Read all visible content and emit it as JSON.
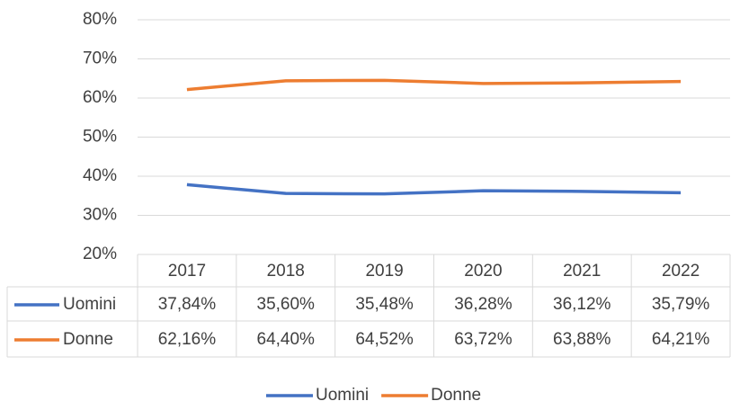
{
  "chart_data": {
    "type": "line",
    "categories": [
      "2017",
      "2018",
      "2019",
      "2020",
      "2021",
      "2022"
    ],
    "series": [
      {
        "name": "Uomini",
        "color": "#4472c4",
        "values": [
          37.84,
          35.6,
          35.48,
          36.28,
          36.12,
          35.79
        ],
        "value_labels": [
          "37,84%",
          "35,60%",
          "35,48%",
          "36,28%",
          "36,12%",
          "35,79%"
        ]
      },
      {
        "name": "Donne",
        "color": "#ed7d31",
        "values": [
          62.16,
          64.4,
          64.52,
          63.72,
          63.88,
          64.21
        ],
        "value_labels": [
          "62,16%",
          "64,40%",
          "64,52%",
          "63,72%",
          "63,88%",
          "64,21%"
        ]
      }
    ],
    "ylim": [
      20,
      80
    ],
    "yticks": [
      {
        "value": 20,
        "label": "20%"
      },
      {
        "value": 30,
        "label": "30%"
      },
      {
        "value": 40,
        "label": "40%"
      },
      {
        "value": 50,
        "label": "50%"
      },
      {
        "value": 60,
        "label": "60%"
      },
      {
        "value": 70,
        "label": "70%"
      },
      {
        "value": 80,
        "label": "80%"
      }
    ],
    "grid": true,
    "data_table": true,
    "legend": "bottom"
  }
}
